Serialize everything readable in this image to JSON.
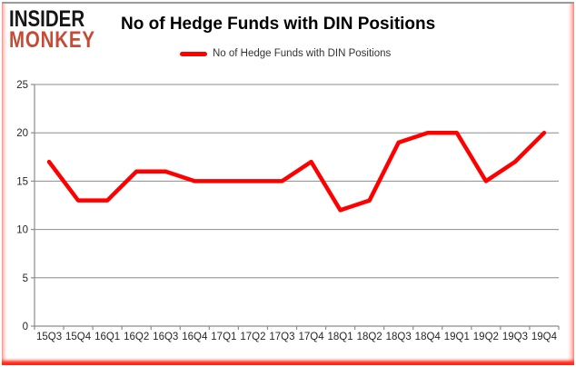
{
  "brand": {
    "line1": "INSIDER",
    "line2": "MONKEY"
  },
  "title": "No of Hedge Funds with DIN Positions",
  "legend": {
    "label": "No of Hedge Funds with DIN Positions"
  },
  "colors": {
    "line": "#fe0000",
    "grid": "#8c8c8c",
    "axis": "#8c8c8c",
    "tick_text": "#262626",
    "title_text": "#000000",
    "logo_black": "#151515",
    "logo_red": "#c64a36",
    "border_red": "#ff1500",
    "border_gray": "#9b9b9b"
  },
  "chart_data": {
    "type": "line",
    "title": "No of Hedge Funds with DIN Positions",
    "xlabel": "",
    "ylabel": "",
    "categories": [
      "15Q3",
      "15Q4",
      "16Q1",
      "16Q2",
      "16Q3",
      "16Q4",
      "17Q1",
      "17Q2",
      "17Q3",
      "17Q4",
      "18Q1",
      "18Q2",
      "18Q3",
      "18Q4",
      "19Q1",
      "19Q2",
      "19Q3",
      "19Q4"
    ],
    "series": [
      {
        "name": "No of Hedge Funds with DIN Positions",
        "color": "#fe0000",
        "values": [
          17,
          13,
          13,
          16,
          16,
          15,
          15,
          15,
          15,
          17,
          12,
          13,
          19,
          20,
          20,
          15,
          17,
          20
        ]
      }
    ],
    "ylim": [
      0,
      25
    ],
    "yticks": [
      0,
      5,
      10,
      15,
      20,
      25
    ],
    "grid": true,
    "legend_position": "top-center"
  }
}
